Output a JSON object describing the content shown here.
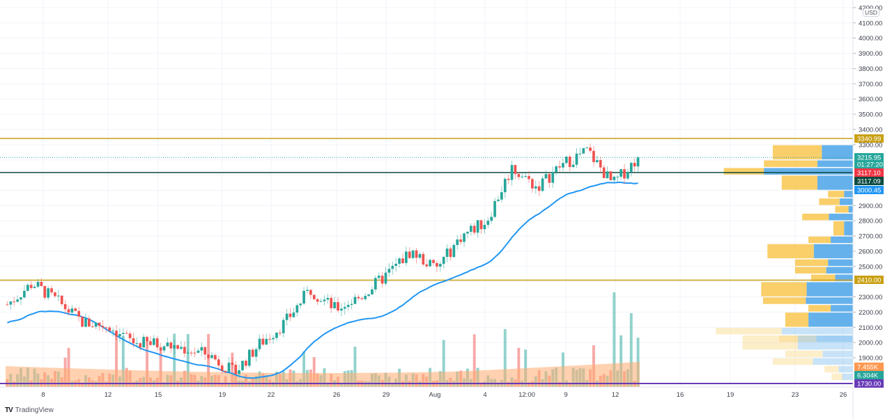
{
  "app": {
    "brand": "TradingView",
    "brand_mark": "TV"
  },
  "price_axis": {
    "currency": "USD",
    "ticks": [
      "4200.00",
      "4100.00",
      "4000.00",
      "3900.00",
      "3800.00",
      "3700.00",
      "3600.00",
      "3500.00",
      "3400.00",
      "3300.00",
      "2900.00",
      "2800.00",
      "2700.00",
      "2600.00",
      "2500.00",
      "2300.00",
      "2200.00",
      "2100.00",
      "2000.00",
      "1900.00"
    ]
  },
  "time_axis": {
    "ticks": [
      "8",
      "12",
      "15",
      "19",
      "22",
      "26",
      "29",
      "Aug",
      "4",
      "12:00",
      "9",
      "12",
      "16",
      "19",
      "23",
      "26"
    ]
  },
  "price_tags": [
    {
      "name": "resistance-level",
      "value": "3340.99",
      "color": "#c9a013"
    },
    {
      "name": "last-price",
      "value": "3215.95",
      "countdown": "01:27:20",
      "color": "#26a69a"
    },
    {
      "name": "high-line",
      "value": "3117.10",
      "color": "#f23645"
    },
    {
      "name": "poc-line",
      "value": "3117.09",
      "color": "#0b4a40"
    },
    {
      "name": "ma-value",
      "value": "3000.45",
      "color": "#2196f3"
    },
    {
      "name": "support-level",
      "value": "2410.00",
      "color": "#c9a013"
    },
    {
      "name": "volume-ma",
      "value": "7.455K",
      "color": "#ff9850"
    },
    {
      "name": "volume",
      "value": "6.304K",
      "color": "#26a69a"
    },
    {
      "name": "low-level",
      "value": "1730.00",
      "color": "#673ab7"
    }
  ],
  "colors": {
    "up": "#26a69a",
    "down": "#ef5350",
    "ma": "#2196f3",
    "level": "#c9a013",
    "vp_up": "#f9c74f",
    "vp_down": "#4aa3e8",
    "volume_ma_fill": "#ffab70"
  },
  "chart_data": {
    "type": "candlestick",
    "title": "",
    "symbol_currency": "USD",
    "xlabel": "",
    "ylabel": "USD",
    "ylim": [
      1730,
      4200
    ],
    "x_ticks": [
      "8",
      "12",
      "15",
      "19",
      "22",
      "26",
      "29",
      "Aug",
      "4",
      "12:00",
      "9",
      "12",
      "16",
      "19",
      "23",
      "26"
    ],
    "y_ticks": [
      1900,
      2000,
      2100,
      2200,
      2300,
      2400,
      2500,
      2600,
      2700,
      2800,
      2900,
      3000,
      3100,
      3200,
      3300,
      3400,
      3500,
      3600,
      3700,
      3800,
      3900,
      4000,
      4100,
      4200
    ],
    "horizontal_levels": [
      {
        "label": "resistance",
        "value": 3340.99
      },
      {
        "label": "support",
        "value": 2410.0
      },
      {
        "label": "poc",
        "value": 3117.09
      },
      {
        "label": "low",
        "value": 1730.0
      }
    ],
    "last_price": 3215.95,
    "countdown": "01:27:20",
    "moving_average_last": 3000.45,
    "volume_last": "6.304K",
    "volume_ma_last": "7.455K",
    "approx_close_path": [
      {
        "x": "5",
        "close": 2250
      },
      {
        "x": "7",
        "close": 2390
      },
      {
        "x": "8",
        "close": 2270
      },
      {
        "x": "10",
        "close": 2130
      },
      {
        "x": "12",
        "close": 2110
      },
      {
        "x": "13",
        "close": 2000
      },
      {
        "x": "15",
        "close": 1990
      },
      {
        "x": "17",
        "close": 1960
      },
      {
        "x": "19",
        "close": 1920
      },
      {
        "x": "21",
        "close": 1800
      },
      {
        "x": "22",
        "close": 1990
      },
      {
        "x": "24",
        "close": 2130
      },
      {
        "x": "26",
        "close": 2350
      },
      {
        "x": "27",
        "close": 2220
      },
      {
        "x": "29",
        "close": 2300
      },
      {
        "x": "30",
        "close": 2440
      },
      {
        "x": "Aug 1",
        "close": 2600
      },
      {
        "x": "3",
        "close": 2480
      },
      {
        "x": "5",
        "close": 2700
      },
      {
        "x": "6",
        "close": 2800
      },
      {
        "x": "7",
        "close": 3150
      },
      {
        "x": "9",
        "close": 3020
      },
      {
        "x": "10",
        "close": 3170
      },
      {
        "x": "11",
        "close": 3260
      },
      {
        "x": "12",
        "close": 3040
      },
      {
        "x": "13",
        "close": 3215.95
      }
    ],
    "volume_profile": [
      {
        "price_low": 3200,
        "price_high": 3300,
        "up": 0.55,
        "down": 0.35
      },
      {
        "price_low": 3150,
        "price_high": 3200,
        "up": 0.6,
        "down": 0.4
      },
      {
        "price_low": 3100,
        "price_high": 3150,
        "up": 0.45,
        "down": 1.0
      },
      {
        "price_low": 3000,
        "price_high": 3100,
        "up": 0.4,
        "down": 0.4
      },
      {
        "price_low": 2950,
        "price_high": 3000,
        "up": 0.18,
        "down": 0.1
      },
      {
        "price_low": 2900,
        "price_high": 2950,
        "up": 0.23,
        "down": 0.15
      },
      {
        "price_low": 2850,
        "price_high": 2900,
        "up": 0.15,
        "down": 0.05
      },
      {
        "price_low": 2800,
        "price_high": 2850,
        "up": 0.3,
        "down": 0.27
      },
      {
        "price_low": 2700,
        "price_high": 2800,
        "up": 0.12,
        "down": 0.1
      },
      {
        "price_low": 2650,
        "price_high": 2700,
        "up": 0.25,
        "down": 0.25
      },
      {
        "price_low": 2550,
        "price_high": 2650,
        "up": 0.52,
        "down": 0.44
      },
      {
        "price_low": 2500,
        "price_high": 2550,
        "up": 0.37,
        "down": 0.28
      },
      {
        "price_low": 2450,
        "price_high": 2500,
        "up": 0.35,
        "down": 0.3
      },
      {
        "price_low": 2400,
        "price_high": 2450,
        "up": 0.27,
        "down": 0.2
      },
      {
        "price_low": 2300,
        "price_high": 2400,
        "up": 0.51,
        "down": 0.52
      },
      {
        "price_low": 2250,
        "price_high": 2300,
        "up": 0.48,
        "down": 0.53
      },
      {
        "price_low": 2200,
        "price_high": 2250,
        "up": 0.25,
        "down": 0.25
      },
      {
        "price_low": 2100,
        "price_high": 2200,
        "up": 0.26,
        "down": 0.5
      },
      {
        "price_low": 2050,
        "price_high": 2100,
        "up": 0.74,
        "down": 0.8
      },
      {
        "price_low": 2000,
        "price_high": 2050,
        "up": 0.42,
        "down": 0.41
      },
      {
        "price_low": 1950,
        "price_high": 2050,
        "up": 0.62,
        "down": 0.62
      },
      {
        "price_low": 1900,
        "price_high": 1950,
        "up": 0.42,
        "down": 0.34
      },
      {
        "price_low": 1850,
        "price_high": 1900,
        "up": 0.45,
        "down": 0.45
      },
      {
        "price_low": 1800,
        "price_high": 1850,
        "up": 0.16,
        "down": 0.16
      },
      {
        "price_low": 1750,
        "price_high": 1800,
        "up": 0.12,
        "down": 0.12
      }
    ]
  }
}
